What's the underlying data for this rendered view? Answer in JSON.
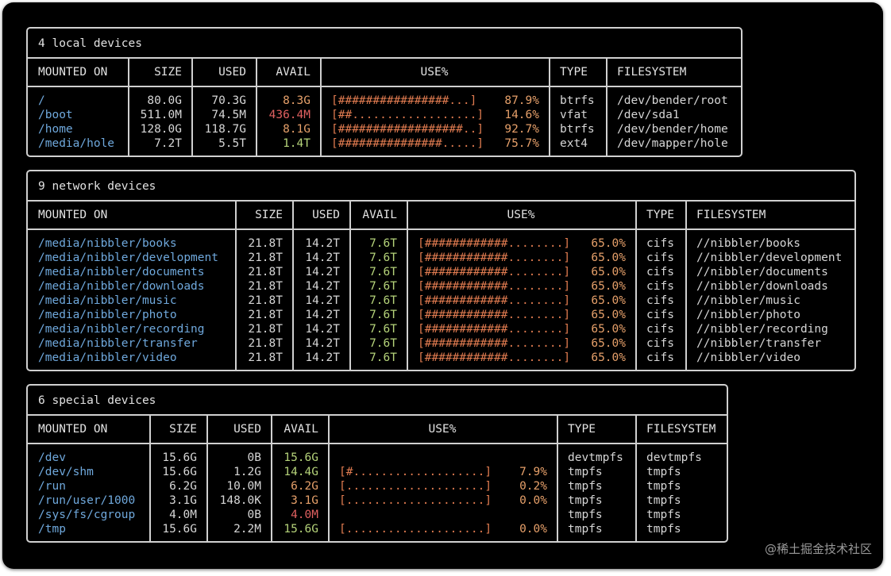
{
  "local": {
    "title": "4 local devices",
    "headers": {
      "mounted_on": "MOUNTED ON",
      "size": "SIZE",
      "used": "USED",
      "avail": "AVAIL",
      "use_pct": "USE%",
      "type": "TYPE",
      "filesystem": "FILESYSTEM"
    },
    "rows": [
      {
        "mount": "/",
        "size": "80.0G",
        "used": "70.3G",
        "avail": "8.3G",
        "avail_color": "#e6a06a",
        "bar": "[################...]",
        "pct": "87.9%",
        "type": "btrfs",
        "fs": "/dev/bender/root"
      },
      {
        "mount": "/boot",
        "size": "511.0M",
        "used": "74.5M",
        "avail": "436.4M",
        "avail_color": "#e06060",
        "bar": "[##..................]",
        "pct": "14.6%",
        "type": "vfat",
        "fs": "/dev/sda1"
      },
      {
        "mount": "/home",
        "size": "128.0G",
        "used": "118.7G",
        "avail": "8.1G",
        "avail_color": "#e6a06a",
        "bar": "[##################..]",
        "pct": "92.7%",
        "type": "btrfs",
        "fs": "/dev/bender/home"
      },
      {
        "mount": "/media/hole",
        "size": "7.2T",
        "used": "5.5T",
        "avail": "1.4T",
        "avail_color": "#b5d37a",
        "bar": "[###############.....]",
        "pct": "75.7%",
        "type": "ext4",
        "fs": "/dev/mapper/hole"
      }
    ]
  },
  "network": {
    "title": "9 network devices",
    "headers": {
      "mounted_on": "MOUNTED ON",
      "size": "SIZE",
      "used": "USED",
      "avail": "AVAIL",
      "use_pct": "USE%",
      "type": "TYPE",
      "filesystem": "FILESYSTEM"
    },
    "rows": [
      {
        "mount": "/media/nibbler/books",
        "size": "21.8T",
        "used": "14.2T",
        "avail": "7.6T",
        "bar": "[############........]",
        "pct": "65.0%",
        "type": "cifs",
        "fs": "//nibbler/books"
      },
      {
        "mount": "/media/nibbler/development",
        "size": "21.8T",
        "used": "14.2T",
        "avail": "7.6T",
        "bar": "[############........]",
        "pct": "65.0%",
        "type": "cifs",
        "fs": "//nibbler/development"
      },
      {
        "mount": "/media/nibbler/documents",
        "size": "21.8T",
        "used": "14.2T",
        "avail": "7.6T",
        "bar": "[############........]",
        "pct": "65.0%",
        "type": "cifs",
        "fs": "//nibbler/documents"
      },
      {
        "mount": "/media/nibbler/downloads",
        "size": "21.8T",
        "used": "14.2T",
        "avail": "7.6T",
        "bar": "[############........]",
        "pct": "65.0%",
        "type": "cifs",
        "fs": "//nibbler/downloads"
      },
      {
        "mount": "/media/nibbler/music",
        "size": "21.8T",
        "used": "14.2T",
        "avail": "7.6T",
        "bar": "[############........]",
        "pct": "65.0%",
        "type": "cifs",
        "fs": "//nibbler/music"
      },
      {
        "mount": "/media/nibbler/photo",
        "size": "21.8T",
        "used": "14.2T",
        "avail": "7.6T",
        "bar": "[############........]",
        "pct": "65.0%",
        "type": "cifs",
        "fs": "//nibbler/photo"
      },
      {
        "mount": "/media/nibbler/recording",
        "size": "21.8T",
        "used": "14.2T",
        "avail": "7.6T",
        "bar": "[############........]",
        "pct": "65.0%",
        "type": "cifs",
        "fs": "//nibbler/recording"
      },
      {
        "mount": "/media/nibbler/transfer",
        "size": "21.8T",
        "used": "14.2T",
        "avail": "7.6T",
        "bar": "[############........]",
        "pct": "65.0%",
        "type": "cifs",
        "fs": "//nibbler/transfer"
      },
      {
        "mount": "/media/nibbler/video",
        "size": "21.8T",
        "used": "14.2T",
        "avail": "7.6T",
        "bar": "[############........]",
        "pct": "65.0%",
        "type": "cifs",
        "fs": "//nibbler/video"
      }
    ]
  },
  "special": {
    "title": "6 special devices",
    "headers": {
      "mounted_on": "MOUNTED ON",
      "size": "SIZE",
      "used": "USED",
      "avail": "AVAIL",
      "use_pct": "USE%",
      "type": "TYPE",
      "filesystem": "FILESYSTEM"
    },
    "rows": [
      {
        "mount": "/dev",
        "size": "15.6G",
        "used": "0B",
        "avail": "15.6G",
        "avail_color": "#b5d37a",
        "bar": "",
        "pct": "",
        "type": "devtmpfs",
        "fs": "devtmpfs"
      },
      {
        "mount": "/dev/shm",
        "size": "15.6G",
        "used": "1.2G",
        "avail": "14.4G",
        "avail_color": "#b5d37a",
        "bar": "[#...................]",
        "pct": "7.9%",
        "type": "tmpfs",
        "fs": "tmpfs"
      },
      {
        "mount": "/run",
        "size": "6.2G",
        "used": "10.0M",
        "avail": "6.2G",
        "avail_color": "#e6a06a",
        "bar": "[....................]",
        "pct": "0.2%",
        "type": "tmpfs",
        "fs": "tmpfs"
      },
      {
        "mount": "/run/user/1000",
        "size": "3.1G",
        "used": "148.0K",
        "avail": "3.1G",
        "avail_color": "#e6a06a",
        "bar": "[....................]",
        "pct": "0.0%",
        "type": "tmpfs",
        "fs": "tmpfs"
      },
      {
        "mount": "/sys/fs/cgroup",
        "size": "4.0M",
        "used": "0B",
        "avail": "4.0M",
        "avail_color": "#e06060",
        "bar": "",
        "pct": "",
        "type": "tmpfs",
        "fs": "tmpfs"
      },
      {
        "mount": "/tmp",
        "size": "15.6G",
        "used": "2.2M",
        "avail": "15.6G",
        "avail_color": "#b5d37a",
        "bar": "[....................]",
        "pct": "0.0%",
        "type": "tmpfs",
        "fs": "tmpfs"
      }
    ]
  },
  "watermark": "@稀土掘金技术社区"
}
